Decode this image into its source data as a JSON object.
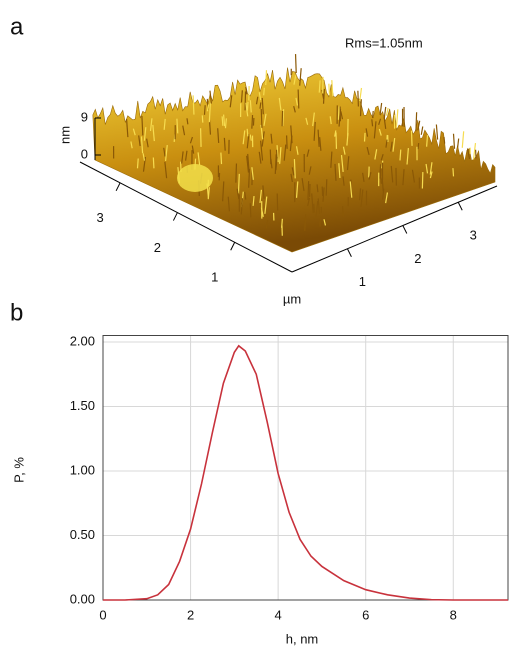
{
  "chart_data": [
    {
      "type": "surface",
      "panel": "a",
      "annotation": "Rms=1.05nm",
      "zlabel": "nm",
      "xy_label": "µm",
      "zlim": [
        0,
        9
      ],
      "zticks": [
        9,
        0
      ],
      "ylim": [
        0,
        3.7
      ],
      "yticks": [
        3,
        2,
        1
      ],
      "xlim": [
        0,
        3.7
      ],
      "xticks": [
        1,
        2,
        3
      ]
    },
    {
      "type": "line",
      "panel": "b",
      "xlabel": "h, nm",
      "ylabel": "P, %",
      "x": [
        0,
        0.5,
        1,
        1.25,
        1.5,
        1.75,
        2,
        2.25,
        2.5,
        2.75,
        3,
        3.1,
        3.25,
        3.5,
        3.75,
        4,
        4.25,
        4.5,
        4.75,
        5,
        5.5,
        6,
        6.5,
        7,
        7.5,
        8,
        9.25
      ],
      "series": [
        {
          "color": "#c8323c",
          "values": [
            0,
            0,
            0.01,
            0.04,
            0.12,
            0.3,
            0.55,
            0.9,
            1.3,
            1.68,
            1.92,
            1.97,
            1.93,
            1.75,
            1.38,
            0.98,
            0.68,
            0.47,
            0.34,
            0.26,
            0.15,
            0.08,
            0.04,
            0.015,
            0.003,
            0,
            0
          ]
        }
      ],
      "xlim": [
        0,
        9.25
      ],
      "ylim": [
        0,
        2.05
      ],
      "xticks": [
        0,
        2,
        4,
        6,
        8
      ],
      "yticks": [
        {
          "value": 0,
          "label": "0.00"
        },
        {
          "value": 0.5,
          "label": "0.50"
        },
        {
          "value": 1,
          "label": "1.00"
        },
        {
          "value": 1.5,
          "label": "1.50"
        },
        {
          "value": 2,
          "label": "2.00"
        }
      ],
      "grid": true
    }
  ]
}
